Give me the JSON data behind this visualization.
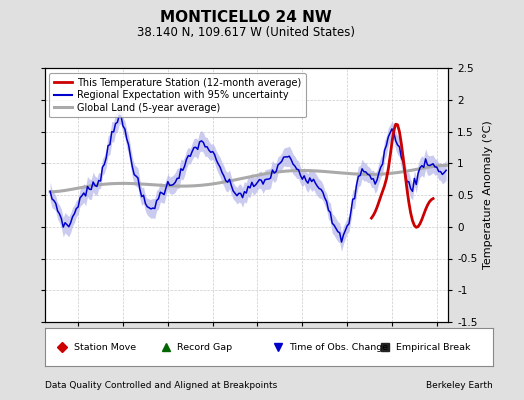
{
  "title": "MONTICELLO 24 NW",
  "subtitle": "38.140 N, 109.617 W (United States)",
  "ylabel": "Temperature Anomaly (°C)",
  "xlabel_bottom_left": "Data Quality Controlled and Aligned at Breakpoints",
  "xlabel_bottom_right": "Berkeley Earth",
  "ylim": [
    -1.5,
    2.5
  ],
  "xlim": [
    1996.5,
    2014.5
  ],
  "xticks": [
    1998,
    2000,
    2002,
    2004,
    2006,
    2008,
    2010,
    2012,
    2014
  ],
  "yticks": [
    -1.5,
    -1.0,
    -0.5,
    0.0,
    0.5,
    1.0,
    1.5,
    2.0,
    2.5
  ],
  "bg_color": "#e0e0e0",
  "plot_bg_color": "#ffffff",
  "grid_color": "#cccccc",
  "regional_line_color": "#0000cc",
  "regional_fill_color": "#b0b0e8",
  "station_line_color": "#cc0000",
  "global_line_color": "#aaaaaa",
  "legend1_items": [
    {
      "label": "This Temperature Station (12-month average)",
      "color": "#cc0000",
      "lw": 2.0
    },
    {
      "label": "Regional Expectation with 95% uncertainty",
      "color": "#0000cc",
      "lw": 1.5
    },
    {
      "label": "Global Land (5-year average)",
      "color": "#aaaaaa",
      "lw": 2.5
    }
  ],
  "legend2_items": [
    {
      "label": "Station Move",
      "marker": "D",
      "color": "#cc0000"
    },
    {
      "label": "Record Gap",
      "marker": "^",
      "color": "#006600"
    },
    {
      "label": "Time of Obs. Change",
      "marker": "v",
      "color": "#0000cc"
    },
    {
      "label": "Empirical Break",
      "marker": "s",
      "color": "#333333"
    }
  ]
}
